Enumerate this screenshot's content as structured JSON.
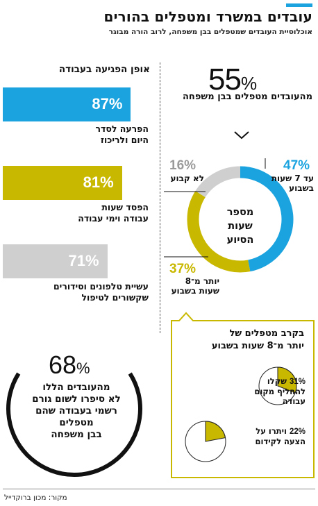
{
  "colors": {
    "accent": "#1aa3df",
    "blue": "#1aa3df",
    "yellow": "#c9b800",
    "gray": "#cfcfcf",
    "dark": "#111111"
  },
  "header": {
    "title": "עובדים במשרד ומטפלים בהורים",
    "subtitle": "אוכלוסיית העובדים שמטפלים בבן משפחה, לרוב הורה מבוגר"
  },
  "right_panel": {
    "big_number": "55",
    "percent_sign": "%",
    "caption": "מהעובדים מטפלים בבן משפחה",
    "donut_center": [
      "מספר",
      "שעות",
      "הסיוע"
    ]
  },
  "left_panel": {
    "heading": "אופן הפגיעה בעבודה"
  },
  "box": {
    "title_line1": "בקרב מטפלים של",
    "title_line2": "יותר מ־8 שעות בשבוע"
  },
  "bottom_note": {
    "big_number": "68",
    "percent_sign": "%",
    "lines": [
      "מהעובדים הללו",
      "לא סיפרו לשום גורם",
      "רשמי בעבודה שהם",
      "מטפלים",
      "בבן משפחה"
    ]
  },
  "source": "מקור: מכון ברוקדייל",
  "chart_data": [
    {
      "type": "bar",
      "title": "אופן הפגיעה בעבודה",
      "categories": [
        "הפרעה לסדר היום ולריכוז",
        "הפסד שעות עבודה וימי עבודה",
        "עשיית טלפונים וסידורים שקשורים לטיפול"
      ],
      "category_lines": [
        [
          "הפרעה לסדר",
          "היום ולריכוז"
        ],
        [
          "הפסד שעות",
          "עבודה וימי עבודה"
        ],
        [
          "עשיית טלפונים וסידורים",
          "שקשורים לטיפול"
        ]
      ],
      "values": [
        87,
        81,
        71
      ],
      "labels": [
        "87%",
        "81%",
        "71%"
      ],
      "colors": [
        "#1aa3df",
        "#c9b800",
        "#cfcfcf"
      ],
      "xlim": [
        0,
        100
      ]
    },
    {
      "type": "pie",
      "title": "מספר שעות הסיוע",
      "slices": [
        {
          "label": "עד 7 שעות בשבוע",
          "lines": [
            "עד 7 שעות",
            "בשבוע"
          ],
          "value": 47,
          "value_label": "47%",
          "color": "#1aa3df"
        },
        {
          "label": "יותר מ־8 שעות בשבוע",
          "lines": [
            "יותר מ־8",
            "שעות בשבוע"
          ],
          "value": 37,
          "value_label": "37%",
          "color": "#c9b800"
        },
        {
          "label": "לא קבוע",
          "lines": [
            "לא קבוע"
          ],
          "value": 16,
          "value_label": "16%",
          "color": "#cfcfcf"
        }
      ]
    },
    {
      "type": "pie",
      "label": "שקלו להחליף מקום עבודה",
      "value": 31,
      "value_label": "31%",
      "lines": [
        "שקלו",
        "להחליף מקום",
        "עבודה"
      ],
      "color": "#c9b800"
    },
    {
      "type": "pie",
      "label": "ויתרו על הצעה לקידום",
      "value": 22,
      "value_label": "22%",
      "lines": [
        "ויתרו על",
        "הצעה לקידום"
      ],
      "color": "#c9b800"
    },
    {
      "type": "pie",
      "label": "לא סיפרו לשום גורם רשמי בעבודה שהם מטפלים בבן משפחה",
      "value": 68,
      "value_label": "68%",
      "color": "#111111"
    }
  ]
}
